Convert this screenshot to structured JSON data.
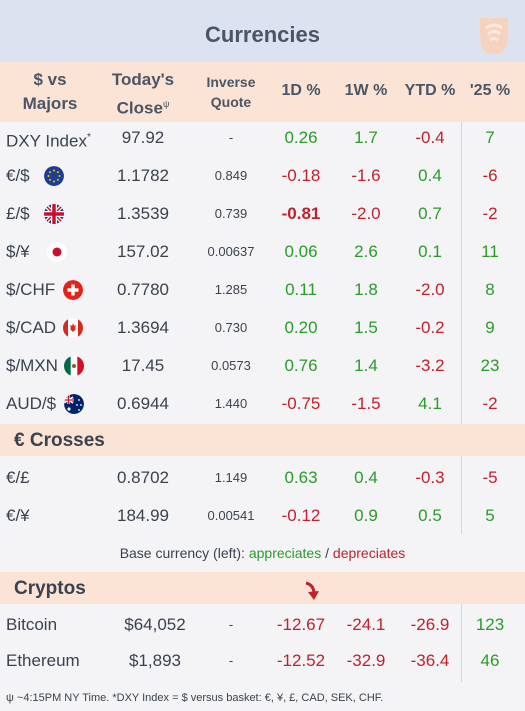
{
  "title": "Currencies",
  "headers": {
    "pair_line1": "$ vs",
    "pair_line2": "Majors",
    "close_line1": "Today's",
    "close_line2": "Close",
    "close_mark": "ψ",
    "inverse_line1": "Inverse",
    "inverse_line2": "Quote",
    "d1": "1D %",
    "w1": "1W %",
    "ytd": "YTD %",
    "y25": "'25 %"
  },
  "majors": [
    {
      "name": "DXY Index",
      "sup": "*",
      "flag": "",
      "close": "97.92",
      "inverse": "-",
      "d1": "0.26",
      "w1": "1.7",
      "ytd": "-0.4",
      "y25": "7"
    },
    {
      "name": "€/$",
      "sup": "",
      "flag": "eu",
      "close": "1.1782",
      "inverse": "0.849",
      "d1": "-0.18",
      "w1": "-1.6",
      "ytd": "0.4",
      "y25": "-6"
    },
    {
      "name": "£/$",
      "sup": "",
      "flag": "uk",
      "close": "1.3539",
      "inverse": "0.739",
      "d1": "-0.81",
      "w1": "-2.0",
      "ytd": "0.7",
      "y25": "-2"
    },
    {
      "name": "$/¥",
      "sup": "",
      "flag": "jp",
      "close": "157.02",
      "inverse": "0.00637",
      "d1": "0.06",
      "w1": "2.6",
      "ytd": "0.1",
      "y25": "11"
    },
    {
      "name": "$/CHF",
      "sup": "",
      "flag": "ch",
      "close": "0.7780",
      "inverse": "1.285",
      "d1": "0.11",
      "w1": "1.8",
      "ytd": "-2.0",
      "y25": "8"
    },
    {
      "name": "$/CAD",
      "sup": "",
      "flag": "ca",
      "close": "1.3694",
      "inverse": "0.730",
      "d1": "0.20",
      "w1": "1.5",
      "ytd": "-0.2",
      "y25": "9"
    },
    {
      "name": "$/MXN",
      "sup": "",
      "flag": "mx",
      "close": "17.45",
      "inverse": "0.0573",
      "d1": "0.76",
      "w1": "1.4",
      "ytd": "-3.2",
      "y25": "23"
    },
    {
      "name": "AUD/$",
      "sup": "",
      "flag": "au",
      "close": "0.6944",
      "inverse": "1.440",
      "d1": "-0.75",
      "w1": "-1.5",
      "ytd": "4.1",
      "y25": "-2"
    }
  ],
  "crosses_title": "€ Crosses",
  "crosses": [
    {
      "name": "€/£",
      "close": "0.8702",
      "inverse": "1.149",
      "d1": "0.63",
      "w1": "0.4",
      "ytd": "-0.3",
      "y25": "-5"
    },
    {
      "name": "€/¥",
      "close": "184.99",
      "inverse": "0.00541",
      "d1": "-0.12",
      "w1": "0.9",
      "ytd": "0.5",
      "y25": "5"
    }
  ],
  "legend_note": {
    "prefix": "Base currency (left):",
    "appreciates": "appreciates",
    "slash": "/",
    "depreciates": "depreciates"
  },
  "cryptos_title": "Cryptos",
  "cryptos": [
    {
      "name": "Bitcoin",
      "close": "$64,052",
      "inverse": "-",
      "d1": "-12.67",
      "w1": "-24.1",
      "ytd": "-26.9",
      "y25": "123"
    },
    {
      "name": "Ethereum",
      "close": "$1,893",
      "inverse": "-",
      "d1": "-12.52",
      "w1": "-32.9",
      "ytd": "-36.4",
      "y25": "46"
    }
  ],
  "footnote": "ψ ~4:15PM NY Time.   *DXY Index = $ versus basket: €, ¥, £, CAD, SEK, CHF.",
  "colors": {
    "positive": "#2a9b2a",
    "negative": "#c0212d",
    "header_bg": "#fbe4d5",
    "title_bg": "#dde2f0"
  },
  "icons": {
    "logo": "horseshoe-logo-icon",
    "arrow": "down-arrow-icon"
  },
  "chart_data": {
    "type": "table",
    "title": "Currencies",
    "columns": [
      "$ vs Majors",
      "Today's Close",
      "Inverse Quote",
      "1D %",
      "1W %",
      "YTD %",
      "'25 %"
    ],
    "rows": [
      [
        "DXY Index",
        97.92,
        null,
        0.26,
        1.7,
        -0.4,
        7
      ],
      [
        "€/$",
        1.1782,
        0.849,
        -0.18,
        -1.6,
        0.4,
        -6
      ],
      [
        "£/$",
        1.3539,
        0.739,
        -0.81,
        -2.0,
        0.7,
        -2
      ],
      [
        "$/¥",
        157.02,
        0.00637,
        0.06,
        2.6,
        0.1,
        11
      ],
      [
        "$/CHF",
        0.778,
        1.285,
        0.11,
        1.8,
        -2.0,
        8
      ],
      [
        "$/CAD",
        1.3694,
        0.73,
        0.2,
        1.5,
        -0.2,
        9
      ],
      [
        "$/MXN",
        17.45,
        0.0573,
        0.76,
        1.4,
        -3.2,
        23
      ],
      [
        "AUD/$",
        0.6944,
        1.44,
        -0.75,
        -1.5,
        4.1,
        -2
      ],
      [
        "€/£",
        0.8702,
        1.149,
        0.63,
        0.4,
        -0.3,
        -5
      ],
      [
        "€/¥",
        184.99,
        0.00541,
        -0.12,
        0.9,
        0.5,
        5
      ],
      [
        "Bitcoin",
        64052,
        null,
        -12.67,
        -24.1,
        -26.9,
        123
      ],
      [
        "Ethereum",
        1893,
        null,
        -12.52,
        -32.9,
        -36.4,
        46
      ]
    ]
  }
}
